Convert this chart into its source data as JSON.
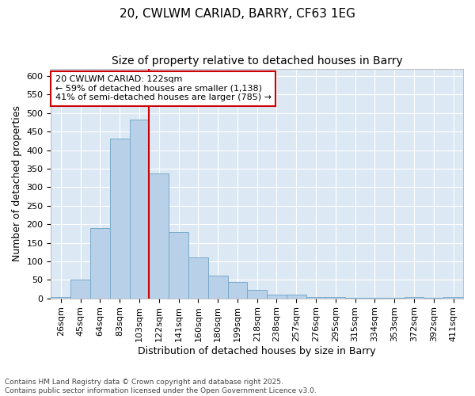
{
  "title1": "20, CWLWM CARIAD, BARRY, CF63 1EG",
  "title2": "Size of property relative to detached houses in Barry",
  "xlabel": "Distribution of detached houses by size in Barry",
  "ylabel": "Number of detached properties",
  "categories": [
    "26sqm",
    "45sqm",
    "64sqm",
    "83sqm",
    "103sqm",
    "122sqm",
    "141sqm",
    "160sqm",
    "180sqm",
    "199sqm",
    "218sqm",
    "238sqm",
    "257sqm",
    "276sqm",
    "295sqm",
    "315sqm",
    "334sqm",
    "353sqm",
    "372sqm",
    "392sqm",
    "411sqm"
  ],
  "values": [
    3,
    50,
    190,
    430,
    483,
    338,
    178,
    110,
    62,
    45,
    23,
    10,
    10,
    4,
    4,
    2,
    1,
    1,
    3,
    1,
    3
  ],
  "bar_color": "#b8d0e8",
  "bar_edge_color": "#7aaac8",
  "vline_color": "#cc0000",
  "annotation_text": "20 CWLWM CARIAD: 122sqm\n← 59% of detached houses are smaller (1,138)\n41% of semi-detached houses are larger (785) →",
  "annotation_box_facecolor": "#ffffff",
  "annotation_box_edgecolor": "#cc0000",
  "ylim": [
    0,
    620
  ],
  "yticks": [
    0,
    50,
    100,
    150,
    200,
    250,
    300,
    350,
    400,
    450,
    500,
    550,
    600
  ],
  "background_color": "#dce9f5",
  "grid_color": "#ffffff",
  "footnote": "Contains HM Land Registry data © Crown copyright and database right 2025.\nContains public sector information licensed under the Open Government Licence v3.0.",
  "title_fontsize": 11,
  "subtitle_fontsize": 10,
  "axis_label_fontsize": 9,
  "tick_fontsize": 8,
  "footnote_fontsize": 6.5,
  "annot_fontsize": 8
}
